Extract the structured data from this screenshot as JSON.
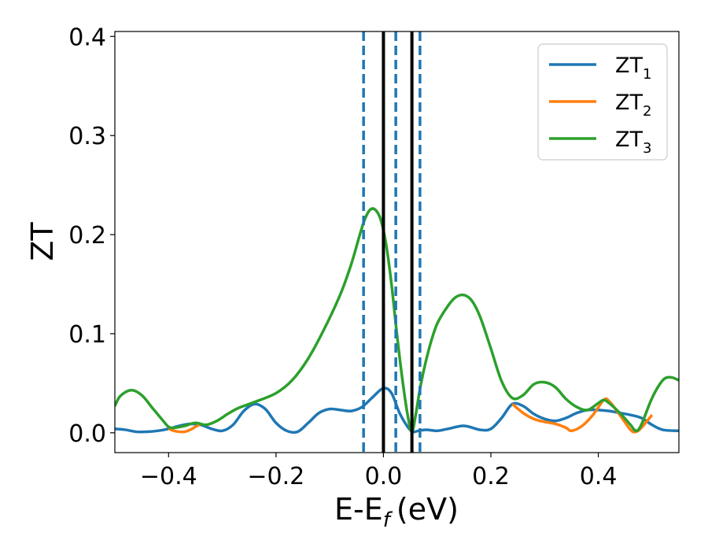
{
  "chart_data": {
    "type": "line",
    "xlabel": "E-E",
    "xlabel_sub": "f",
    "xlabel_unit": "(eV)",
    "ylabel": "ZT",
    "xlim": [
      -0.5,
      0.55
    ],
    "ylim": [
      -0.02,
      0.405
    ],
    "x_ticks": [
      -0.4,
      -0.2,
      0.0,
      0.2,
      0.4
    ],
    "x_tick_labels": [
      "−0.4",
      "−0.2",
      "0.0",
      "0.2",
      "0.4"
    ],
    "y_ticks": [
      0.0,
      0.1,
      0.2,
      0.3,
      0.4
    ],
    "y_tick_labels": [
      "0.0",
      "0.1",
      "0.2",
      "0.3",
      "0.4"
    ],
    "grid": false,
    "legend_position": "top-right",
    "series": [
      {
        "name": "ZT",
        "name_sub": "1",
        "color": "#1f77b4",
        "points": [
          [
            -0.5,
            0.004
          ],
          [
            -0.48,
            0.003
          ],
          [
            -0.46,
            0.001
          ],
          [
            -0.44,
            0.001
          ],
          [
            -0.42,
            0.002
          ],
          [
            -0.4,
            0.004
          ],
          [
            -0.38,
            0.007
          ],
          [
            -0.36,
            0.009
          ],
          [
            -0.34,
            0.008
          ],
          [
            -0.32,
            0.004
          ],
          [
            -0.3,
            0.002
          ],
          [
            -0.28,
            0.008
          ],
          [
            -0.26,
            0.022
          ],
          [
            -0.24,
            0.029
          ],
          [
            -0.22,
            0.024
          ],
          [
            -0.2,
            0.01
          ],
          [
            -0.18,
            0.002
          ],
          [
            -0.16,
            0.001
          ],
          [
            -0.14,
            0.01
          ],
          [
            -0.12,
            0.02
          ],
          [
            -0.1,
            0.024
          ],
          [
            -0.08,
            0.023
          ],
          [
            -0.06,
            0.022
          ],
          [
            -0.04,
            0.026
          ],
          [
            -0.02,
            0.036
          ],
          [
            0.0,
            0.045
          ],
          [
            0.015,
            0.04
          ],
          [
            0.03,
            0.02
          ],
          [
            0.045,
            0.006
          ],
          [
            0.055,
            0.001
          ],
          [
            0.065,
            0.002
          ],
          [
            0.08,
            0.003
          ],
          [
            0.1,
            0.002
          ],
          [
            0.12,
            0.004
          ],
          [
            0.15,
            0.007
          ],
          [
            0.18,
            0.003
          ],
          [
            0.2,
            0.004
          ],
          [
            0.22,
            0.015
          ],
          [
            0.24,
            0.029
          ],
          [
            0.26,
            0.027
          ],
          [
            0.28,
            0.019
          ],
          [
            0.3,
            0.014
          ],
          [
            0.32,
            0.012
          ],
          [
            0.34,
            0.015
          ],
          [
            0.36,
            0.02
          ],
          [
            0.38,
            0.023
          ],
          [
            0.4,
            0.023
          ],
          [
            0.42,
            0.022
          ],
          [
            0.44,
            0.02
          ],
          [
            0.46,
            0.018
          ],
          [
            0.48,
            0.015
          ],
          [
            0.5,
            0.008
          ],
          [
            0.52,
            0.003
          ],
          [
            0.55,
            0.002
          ]
        ]
      },
      {
        "name": "ZT",
        "name_sub": "2",
        "color": "#ff7f0e",
        "points": [
          [
            -0.4,
            0.004
          ],
          [
            -0.39,
            0.002
          ],
          [
            -0.38,
            0.001
          ],
          [
            -0.37,
            0.001
          ],
          [
            -0.36,
            0.003
          ],
          [
            -0.35,
            0.006
          ],
          [
            -0.34,
            0.009
          ],
          [
            0.24,
            0.029
          ],
          [
            0.26,
            0.02
          ],
          [
            0.28,
            0.014
          ],
          [
            0.3,
            0.011
          ],
          [
            0.32,
            0.009
          ],
          [
            0.34,
            0.005
          ],
          [
            0.35,
            0.002
          ],
          [
            0.37,
            0.007
          ],
          [
            0.39,
            0.018
          ],
          [
            0.41,
            0.033
          ],
          [
            0.42,
            0.032
          ],
          [
            0.44,
            0.018
          ],
          [
            0.46,
            0.003
          ],
          [
            0.47,
            0.001
          ],
          [
            0.48,
            0.005
          ],
          [
            0.5,
            0.018
          ]
        ]
      },
      {
        "name": "ZT",
        "name_sub": "3",
        "color": "#2ca02c",
        "points": [
          [
            -0.5,
            0.027
          ],
          [
            -0.49,
            0.037
          ],
          [
            -0.47,
            0.043
          ],
          [
            -0.45,
            0.038
          ],
          [
            -0.43,
            0.025
          ],
          [
            -0.41,
            0.012
          ],
          [
            -0.4,
            0.006
          ],
          [
            -0.39,
            0.005
          ],
          [
            -0.37,
            0.007
          ],
          [
            -0.35,
            0.01
          ],
          [
            -0.33,
            0.008
          ],
          [
            -0.31,
            0.012
          ],
          [
            -0.29,
            0.019
          ],
          [
            -0.27,
            0.025
          ],
          [
            -0.24,
            0.031
          ],
          [
            -0.2,
            0.04
          ],
          [
            -0.17,
            0.053
          ],
          [
            -0.14,
            0.075
          ],
          [
            -0.11,
            0.105
          ],
          [
            -0.08,
            0.14
          ],
          [
            -0.06,
            0.17
          ],
          [
            -0.045,
            0.198
          ],
          [
            -0.035,
            0.215
          ],
          [
            -0.025,
            0.225
          ],
          [
            -0.015,
            0.225
          ],
          [
            -0.005,
            0.215
          ],
          [
            0.005,
            0.19
          ],
          [
            0.015,
            0.15
          ],
          [
            0.025,
            0.1
          ],
          [
            0.035,
            0.055
          ],
          [
            0.045,
            0.018
          ],
          [
            0.053,
            0.001
          ],
          [
            0.06,
            0.018
          ],
          [
            0.07,
            0.05
          ],
          [
            0.085,
            0.085
          ],
          [
            0.1,
            0.11
          ],
          [
            0.12,
            0.128
          ],
          [
            0.135,
            0.137
          ],
          [
            0.15,
            0.139
          ],
          [
            0.165,
            0.133
          ],
          [
            0.18,
            0.117
          ],
          [
            0.2,
            0.085
          ],
          [
            0.22,
            0.052
          ],
          [
            0.24,
            0.035
          ],
          [
            0.26,
            0.038
          ],
          [
            0.28,
            0.049
          ],
          [
            0.3,
            0.051
          ],
          [
            0.32,
            0.046
          ],
          [
            0.34,
            0.034
          ],
          [
            0.36,
            0.026
          ],
          [
            0.38,
            0.023
          ],
          [
            0.4,
            0.03
          ],
          [
            0.41,
            0.033
          ],
          [
            0.42,
            0.03
          ],
          [
            0.44,
            0.02
          ],
          [
            0.46,
            0.008
          ],
          [
            0.47,
            0.002
          ],
          [
            0.48,
            0.008
          ],
          [
            0.5,
            0.035
          ],
          [
            0.52,
            0.053
          ],
          [
            0.535,
            0.056
          ],
          [
            0.55,
            0.053
          ]
        ]
      }
    ],
    "vertical_lines": [
      {
        "x": -0.037,
        "style": "dashed",
        "color": "#1f77b4"
      },
      {
        "x": 0.0,
        "style": "solid",
        "color": "#000000"
      },
      {
        "x": 0.023,
        "style": "dashed",
        "color": "#1f77b4"
      },
      {
        "x": 0.053,
        "style": "solid",
        "color": "#000000"
      },
      {
        "x": 0.068,
        "style": "dashed",
        "color": "#1f77b4"
      }
    ]
  }
}
